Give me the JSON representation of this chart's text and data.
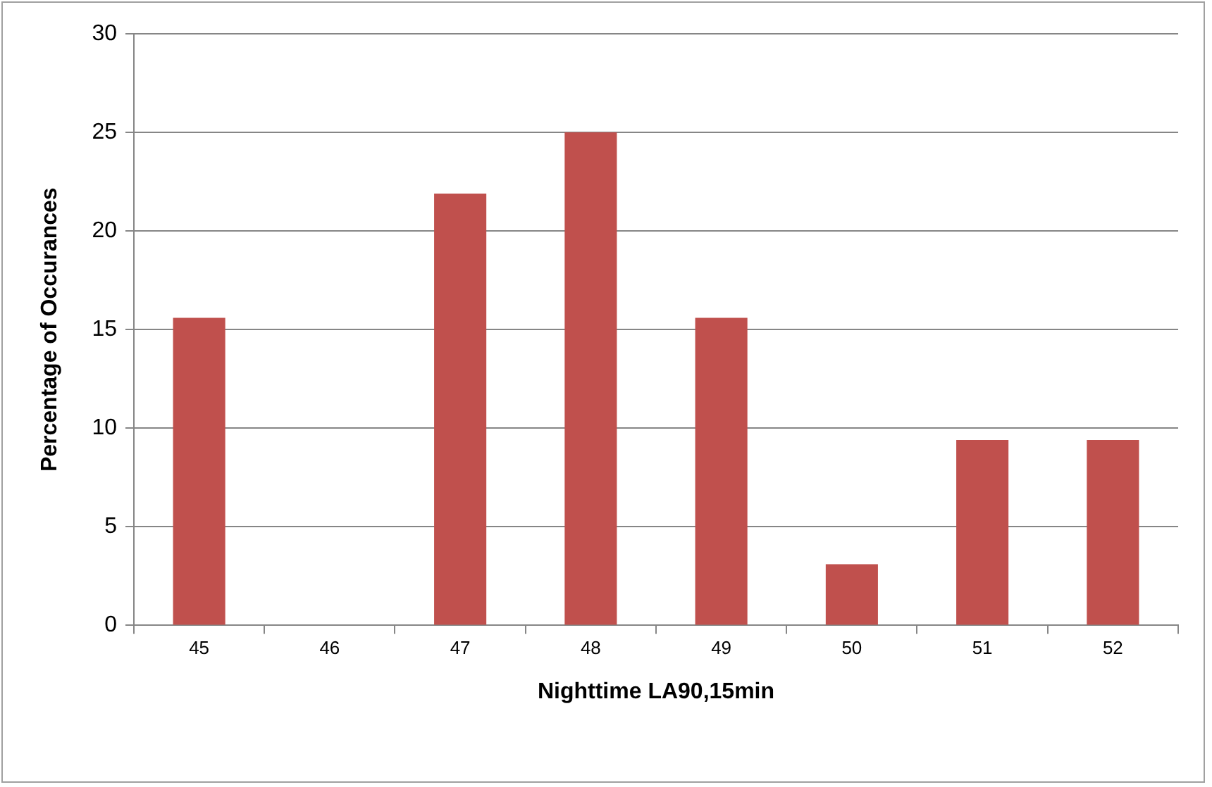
{
  "chart_data": {
    "type": "bar",
    "xlabel": "Nighttime LA90,15min",
    "ylabel": "Percentage of Occurances",
    "categories": [
      "45",
      "46",
      "47",
      "48",
      "49",
      "50",
      "51",
      "52"
    ],
    "values": [
      15.6,
      0,
      21.9,
      25,
      15.6,
      3.1,
      9.4,
      9.4
    ],
    "color": "#c0504d",
    "ylim": [
      0,
      30
    ],
    "yticks": [
      0,
      5,
      10,
      15,
      20,
      25,
      30
    ],
    "grid": "y",
    "legend": false
  }
}
